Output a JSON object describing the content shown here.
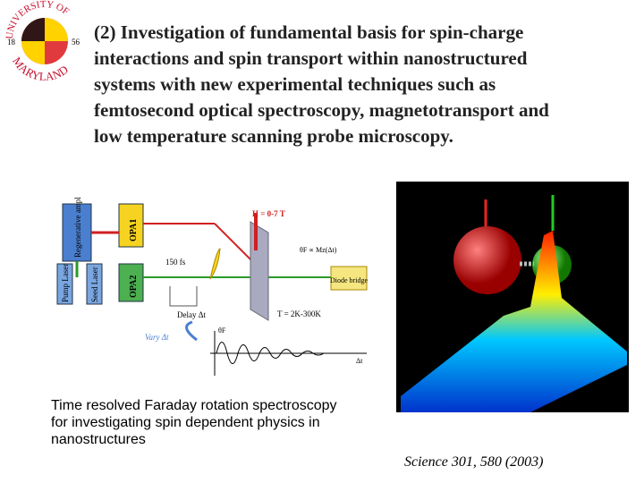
{
  "logo": {
    "top": "UNIVERSITY OF",
    "bottom": "MARYLAND",
    "year_left": "18",
    "year_right": "56"
  },
  "heading": {
    "lines": [
      "(2) Investigation of fundamental basis for spin-charge",
      "interactions and spin transport within nanostructured",
      "systems with new experimental techniques such as",
      "femtosecond optical spectroscopy, magnetotransport and",
      "low temperature scanning probe microscopy."
    ]
  },
  "diagram": {
    "amplifier": "Regenerative amplifier",
    "opa1": "OPA1",
    "opa2": "OPA2",
    "pump": "Pump Laser",
    "seed": "Seed Laser",
    "field": "H = 0-7 T",
    "pulse": "150 fs",
    "rotation": "θF ∝ Mz(Δt)",
    "detector": "Diode bridge",
    "delay": "Delay Δt",
    "temperature": "T = 2K-300K",
    "vary": "Vary Δt",
    "signal_axis": "θF",
    "time_axis": "Δt"
  },
  "caption": {
    "lines": [
      "Time resolved Faraday rotation spectroscopy",
      "for investigating spin dependent physics in",
      "nanostructures"
    ]
  },
  "citation": "Science 301, 580 (2003)"
}
